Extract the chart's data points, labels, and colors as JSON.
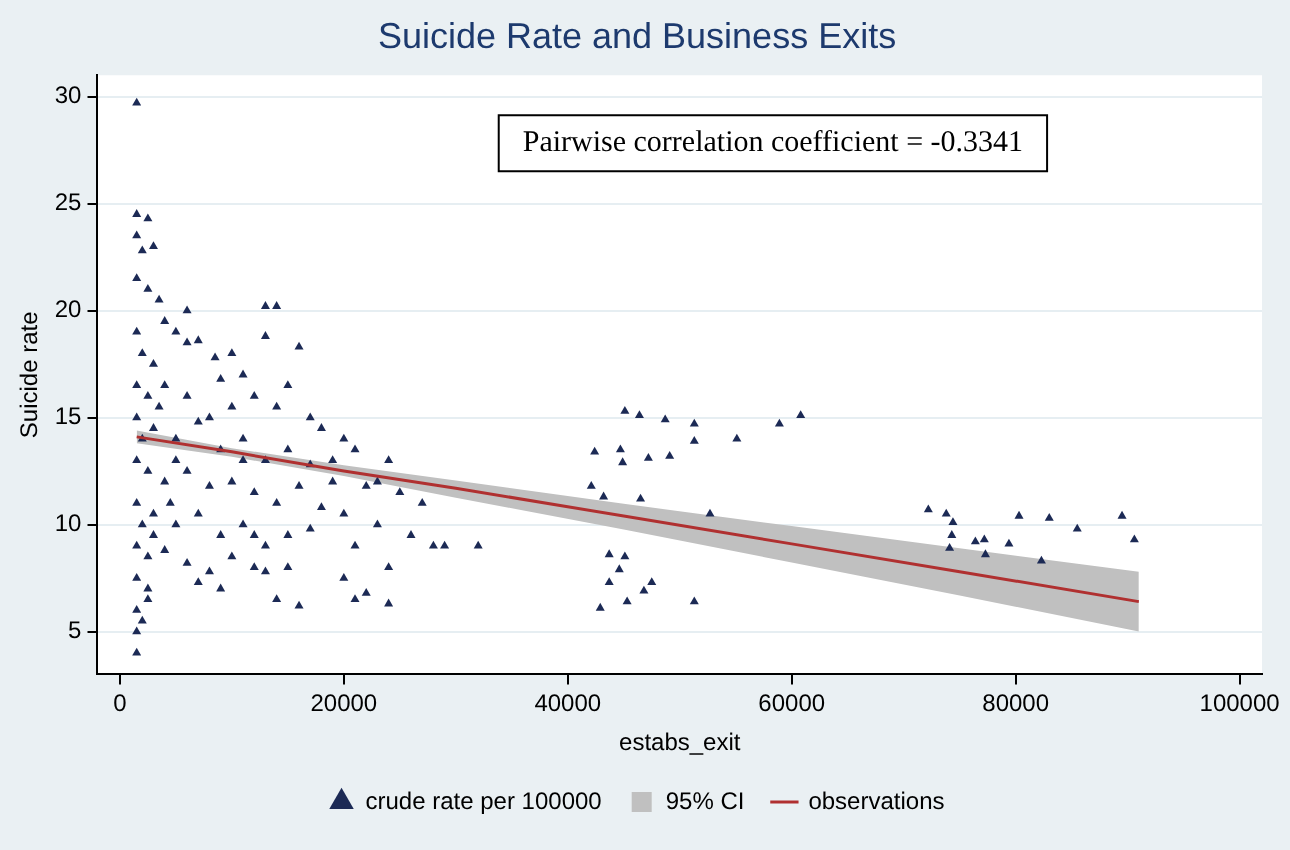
{
  "chart_data": {
    "type": "scatter",
    "title": "Suicide Rate and Business Exits",
    "xlabel": "estabs_exit",
    "ylabel": "Suicide rate",
    "annotations": [
      "Pairwise correlation coefficient = -0.3341"
    ],
    "xlim": [
      -2000,
      102000
    ],
    "ylim": [
      3,
      31
    ],
    "xticks": [
      0,
      20000,
      40000,
      60000,
      80000,
      100000
    ],
    "yticks": [
      5,
      10,
      15,
      20,
      25,
      30
    ],
    "grid": "y",
    "legend": "bottom",
    "series": [
      {
        "name": "crude rate per 100000",
        "type": "scatter",
        "marker": "triangle",
        "color": "#1c2a55",
        "x": [
          1500,
          1500,
          2500,
          1500,
          2000,
          3000,
          1500,
          2500,
          3500,
          4000,
          5000,
          6000,
          7000,
          8500,
          13000,
          14000,
          13000,
          16000,
          1500,
          2000,
          3000,
          1500,
          2500,
          4000,
          6000,
          9000,
          11000,
          10000,
          12000,
          14000,
          15000,
          17000,
          18000,
          20000,
          21000,
          24000,
          1500,
          3000,
          5000,
          7000,
          9000,
          11000,
          13000,
          15000,
          17000,
          19000,
          22000,
          25000,
          27000,
          1500,
          2500,
          4000,
          6000,
          8000,
          10000,
          12000,
          14000,
          16000,
          18000,
          20000,
          23000,
          26000,
          28000,
          32000,
          1500,
          3000,
          5000,
          7000,
          9000,
          11000,
          13000,
          15000,
          17000,
          21000,
          24000,
          1500,
          2500,
          4000,
          6000,
          8000,
          10000,
          12000,
          13000,
          15000,
          20000,
          1500,
          2500,
          7000,
          9000,
          14000,
          16000,
          21000,
          22000,
          24000,
          1500,
          2000,
          1500,
          1500,
          2500,
          5000,
          3500,
          8000,
          10000,
          6000,
          11000,
          19000,
          23000,
          29000,
          12000,
          4500,
          2000,
          2000,
          3000,
          45100,
          46400,
          48700,
          51300,
          55100,
          58900,
          60800,
          42400,
          44700,
          44900,
          47200,
          49100,
          51300,
          42100,
          43200,
          46500,
          52700,
          43700,
          45100,
          44600,
          43700,
          47500,
          46800,
          42900,
          45300,
          51300,
          72200,
          73800,
          74400,
          74300,
          74100,
          76400,
          77200,
          77300,
          79400,
          80300,
          82300,
          83000,
          85500,
          89500,
          90600
        ],
        "values": [
          29.7,
          24.5,
          24.3,
          23.5,
          22.8,
          23.0,
          21.5,
          21.0,
          20.5,
          19.5,
          19.0,
          18.5,
          18.6,
          17.8,
          20.2,
          20.2,
          18.8,
          18.3,
          19.0,
          18.0,
          17.5,
          16.5,
          16.0,
          16.5,
          16.0,
          16.8,
          17.0,
          15.5,
          16.0,
          15.5,
          16.5,
          15.0,
          14.5,
          14.0,
          13.5,
          13.0,
          15.0,
          14.5,
          14.0,
          14.8,
          13.5,
          14.0,
          13.0,
          13.5,
          12.8,
          12.0,
          11.8,
          11.5,
          11.0,
          13.0,
          12.5,
          12.0,
          12.5,
          11.8,
          12.0,
          11.5,
          11.0,
          11.8,
          10.8,
          10.5,
          10.0,
          9.5,
          9.0,
          9.0,
          11.0,
          10.5,
          10.0,
          10.5,
          9.5,
          10.0,
          9.0,
          9.5,
          9.8,
          9.0,
          8.0,
          9.0,
          8.5,
          8.8,
          8.2,
          7.8,
          8.5,
          8.0,
          7.8,
          8.0,
          7.5,
          7.5,
          7.0,
          7.3,
          7.0,
          6.5,
          6.2,
          6.5,
          6.8,
          6.3,
          6.0,
          5.5,
          5.0,
          4.0,
          6.5,
          13.0,
          15.5,
          15.0,
          18.0,
          20.0,
          13.0,
          13.0,
          12.0,
          9.0,
          9.5,
          11.0,
          14.0,
          10.0,
          9.5,
          15.3,
          15.1,
          14.9,
          14.7,
          14.0,
          14.7,
          15.1,
          13.4,
          13.5,
          12.9,
          13.1,
          13.2,
          13.9,
          11.8,
          11.3,
          11.2,
          10.5,
          8.6,
          8.5,
          7.9,
          7.3,
          7.3,
          6.9,
          6.1,
          6.4,
          6.4,
          10.7,
          10.5,
          10.1,
          9.5,
          8.9,
          9.2,
          9.3,
          8.6,
          9.1,
          10.4,
          8.3,
          10.3,
          9.8,
          10.4,
          9.3
        ]
      },
      {
        "name": "95% CI",
        "type": "area",
        "color": "#c0c0c0"
      },
      {
        "name": "observations",
        "type": "line",
        "color": "#b03030",
        "x": [
          1500,
          10000,
          20000,
          30000,
          45000,
          60000,
          75000,
          91000
        ],
        "values": [
          14.1,
          13.4,
          12.5,
          11.7,
          10.4,
          9.1,
          7.8,
          6.4
        ],
        "lower": [
          13.8,
          13.17,
          12.27,
          11.26,
          9.77,
          8.23,
          6.69,
          5.0
        ],
        "upper": [
          14.4,
          13.57,
          12.77,
          12.06,
          10.97,
          9.93,
          8.89,
          7.8
        ]
      }
    ]
  }
}
